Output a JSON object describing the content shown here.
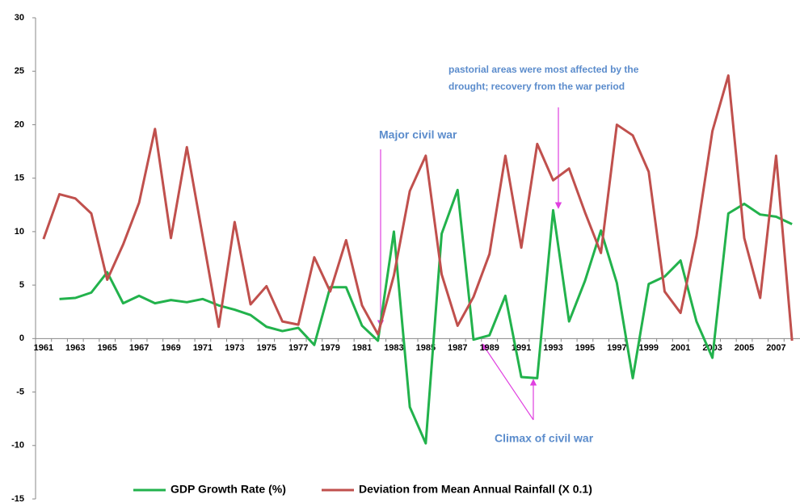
{
  "chart_data": {
    "type": "line",
    "categories": [
      "1961",
      null,
      "1963",
      null,
      "1965",
      null,
      "1967",
      null,
      "1969",
      null,
      "1971",
      null,
      "1973",
      null,
      "1975",
      null,
      "1977",
      null,
      "1979",
      null,
      "1981",
      null,
      "1983",
      null,
      "1985",
      null,
      "1987",
      null,
      "1989",
      null,
      "1991",
      null,
      "1993",
      null,
      "1995",
      null,
      "1997",
      null,
      "1999",
      null,
      "2001",
      null,
      "2003",
      null,
      "2005",
      null,
      "2007",
      null
    ],
    "series": [
      {
        "name": "GDP Growth Rate  (%)",
        "color": "#22b24c",
        "values": [
          null,
          3.7,
          3.8,
          4.3,
          6.2,
          3.3,
          4.0,
          3.3,
          3.6,
          3.4,
          3.7,
          3.1,
          2.7,
          2.2,
          1.1,
          0.7,
          1.0,
          -0.6,
          4.8,
          4.8,
          1.2,
          -0.2,
          10.0,
          -6.4,
          -9.8,
          9.8,
          13.9,
          -0.1,
          0.3,
          4.0,
          -3.6,
          -3.7,
          12.0,
          1.6,
          5.4,
          10.1,
          5.2,
          -3.7,
          5.1,
          5.8,
          7.3,
          1.6,
          -1.8,
          11.7,
          12.6,
          11.6,
          11.4,
          10.7
        ]
      },
      {
        "name": "Deviation from Mean Annual Rainfall (X 0.1)",
        "color": "#c0504d",
        "values": [
          9.3,
          13.5,
          13.1,
          11.7,
          5.5,
          8.8,
          12.7,
          19.6,
          9.4,
          17.9,
          9.5,
          1.1,
          10.9,
          3.2,
          4.9,
          1.6,
          1.3,
          7.6,
          4.4,
          9.2,
          3.1,
          0.4,
          5.9,
          13.8,
          17.1,
          6.0,
          1.2,
          3.9,
          7.9,
          17.1,
          8.5,
          18.2,
          14.8,
          15.9,
          11.8,
          8.0,
          20.0,
          19.0,
          15.6,
          4.4,
          2.4,
          9.6,
          19.4,
          24.6,
          9.4,
          3.8,
          17.1,
          -0.2
        ]
      }
    ],
    "ylim": [
      -15,
      30
    ],
    "yticks": [
      -15,
      -10,
      -5,
      0,
      5,
      10,
      15,
      20,
      25,
      30
    ],
    "grid": false,
    "legend": "bottom",
    "annotations": [
      "Major civil war",
      "pastorial areas were most affected by the",
      "drought; recovery from the war period",
      "Climax of civil war"
    ]
  }
}
